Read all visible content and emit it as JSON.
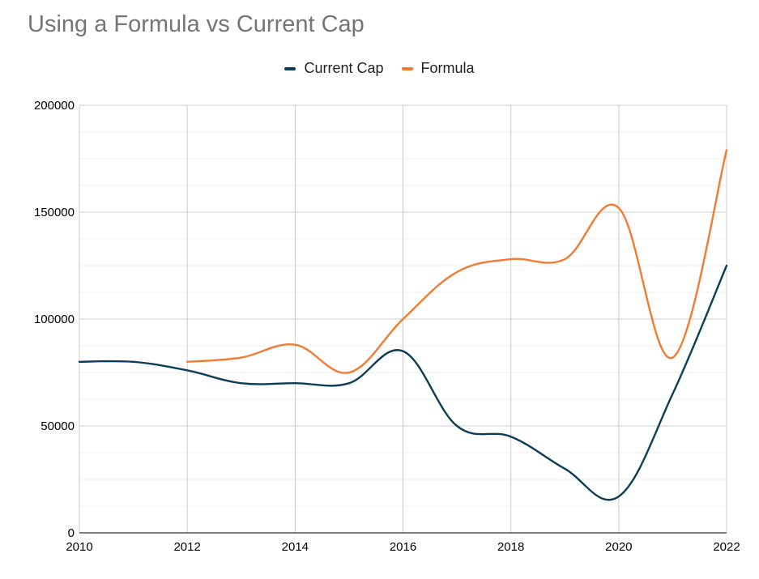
{
  "chart_data": {
    "type": "line",
    "title": "Using a Formula vs Current Cap",
    "xlabel": "",
    "ylabel": "",
    "xlim": [
      2010,
      2022
    ],
    "ylim": [
      0,
      200000
    ],
    "x_ticks": [
      "2010",
      "2012",
      "2014",
      "2016",
      "2018",
      "2020",
      "2022"
    ],
    "y_ticks": [
      "0",
      "50000",
      "100000",
      "150000",
      "200000"
    ],
    "grid": true,
    "legend_position": "top",
    "series": [
      {
        "name": "Current Cap",
        "color": "#0b3d59",
        "points": [
          [
            2010,
            80000
          ],
          [
            2011,
            80000
          ],
          [
            2012,
            76000
          ],
          [
            2013,
            70000
          ],
          [
            2014,
            70000
          ],
          [
            2015,
            70000
          ],
          [
            2016,
            85000
          ],
          [
            2017,
            50000
          ],
          [
            2018,
            45000
          ],
          [
            2019,
            30000
          ],
          [
            2020,
            17000
          ],
          [
            2021,
            65000
          ],
          [
            2022,
            125000
          ]
        ]
      },
      {
        "name": "Formula",
        "color": "#f47a31",
        "points": [
          [
            2012,
            80000
          ],
          [
            2013,
            82000
          ],
          [
            2014,
            88000
          ],
          [
            2015,
            75000
          ],
          [
            2016,
            100000
          ],
          [
            2017,
            122000
          ],
          [
            2018,
            128000
          ],
          [
            2019,
            128000
          ],
          [
            2020,
            152000
          ],
          [
            2021,
            82000
          ],
          [
            2022,
            179000
          ]
        ]
      }
    ]
  }
}
